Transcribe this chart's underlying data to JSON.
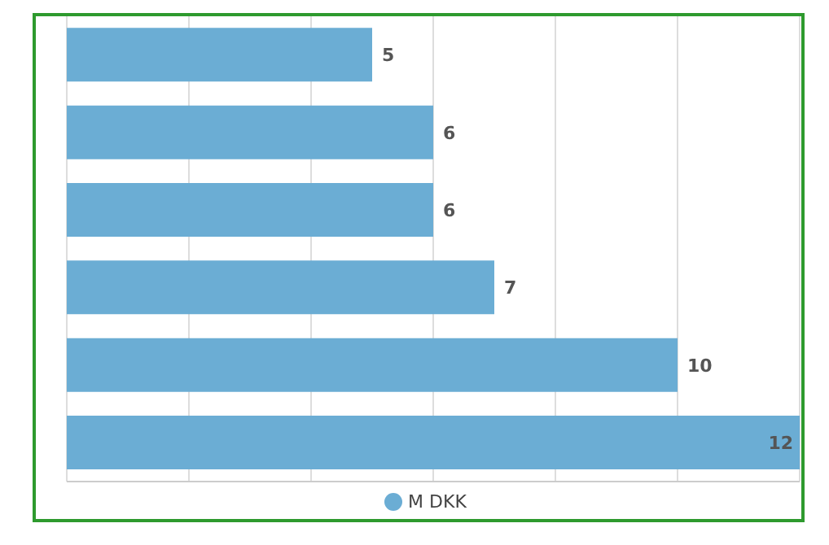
{
  "chart_data": {
    "type": "bar",
    "orientation": "horizontal",
    "categories": [
      null,
      null,
      null,
      null,
      null,
      null
    ],
    "series": [
      {
        "name": "M DKK",
        "color": "#6badd4",
        "values": [
          5,
          6,
          6,
          7,
          10,
          12
        ]
      }
    ],
    "xlim": [
      0,
      12
    ],
    "xticks": [
      {
        "value": 0,
        "label": null
      },
      {
        "value": 2,
        "label": null
      },
      {
        "value": 4,
        "label": null
      },
      {
        "value": 6,
        "label": null
      },
      {
        "value": 8,
        "label": null
      },
      {
        "value": 10,
        "label": null
      },
      {
        "value": 12,
        "label": null
      }
    ],
    "tick_labels": false,
    "grid": "x",
    "legend": "bottom",
    "data_labels": true
  }
}
